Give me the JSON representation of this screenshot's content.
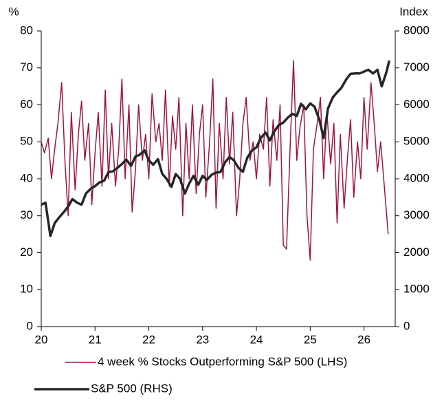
{
  "chart_data": {
    "type": "line",
    "ylabel": "%",
    "y2label": "Index",
    "xlim": [
      20,
      26.58
    ],
    "xticks": [
      20,
      21,
      22,
      23,
      24,
      25,
      26
    ],
    "ylim": [
      0,
      80
    ],
    "yticks": [
      0,
      10,
      20,
      30,
      40,
      50,
      60,
      70,
      80
    ],
    "y2lim": [
      0,
      8000
    ],
    "y2ticks": [
      0,
      1000,
      2000,
      3000,
      4000,
      5000,
      6000,
      7000,
      8000
    ],
    "series": [
      {
        "name": "4 week % Stocks Outperforming S&P 500 (LHS)",
        "color": "#a0123f",
        "axis": "y",
        "x": [
          20,
          20.06,
          20.13,
          20.19,
          20.25,
          20.31,
          20.38,
          20.44,
          20.5,
          20.56,
          20.63,
          20.69,
          20.75,
          20.81,
          20.88,
          20.94,
          21,
          21.06,
          21.13,
          21.19,
          21.25,
          21.31,
          21.38,
          21.44,
          21.5,
          21.56,
          21.63,
          21.69,
          21.75,
          21.81,
          21.88,
          21.94,
          22,
          22.06,
          22.13,
          22.19,
          22.25,
          22.31,
          22.38,
          22.44,
          22.5,
          22.56,
          22.63,
          22.69,
          22.75,
          22.81,
          22.88,
          22.94,
          23,
          23.06,
          23.13,
          23.19,
          23.25,
          23.31,
          23.38,
          23.44,
          23.5,
          23.56,
          23.63,
          23.69,
          23.75,
          23.81,
          23.88,
          23.94,
          24,
          24.06,
          24.13,
          24.19,
          24.25,
          24.31,
          24.38,
          24.44,
          24.5,
          24.56,
          24.63,
          24.69,
          24.75,
          24.81,
          24.88,
          24.94,
          25,
          25.06,
          25.13,
          25.19,
          25.25,
          25.31,
          25.38,
          25.44,
          25.5,
          25.56,
          25.63,
          25.69,
          25.75,
          25.81,
          25.88,
          25.94,
          26,
          26.06,
          26.13,
          26.19,
          26.25,
          26.31,
          26.45
        ],
        "values": [
          50,
          47,
          51,
          40,
          48,
          55,
          66,
          45,
          30,
          58,
          37,
          52,
          61,
          45,
          55,
          33,
          47,
          58,
          38,
          64,
          40,
          55,
          38,
          48,
          67,
          40,
          60,
          31,
          42,
          60,
          45,
          52,
          40,
          63,
          50,
          55,
          45,
          64,
          38,
          57,
          48,
          62,
          30,
          55,
          40,
          60,
          36,
          52,
          60,
          35,
          50,
          67,
          32,
          55,
          40,
          62,
          44,
          58,
          30,
          40,
          55,
          62,
          45,
          50,
          40,
          52,
          48,
          62,
          38,
          56,
          45,
          60,
          22,
          21,
          50,
          72,
          45,
          54,
          60,
          30,
          18,
          48,
          55,
          62,
          40,
          58,
          44,
          55,
          28,
          52,
          32,
          45,
          56,
          35,
          50,
          40,
          62,
          48,
          66,
          55,
          42,
          50,
          25
        ]
      },
      {
        "name": "S&P 500 (RHS)",
        "color": "#262626",
        "axis": "y2",
        "x": [
          20,
          20.08,
          20.17,
          20.25,
          20.33,
          20.42,
          20.5,
          20.58,
          20.67,
          20.75,
          20.83,
          20.92,
          21,
          21.08,
          21.17,
          21.25,
          21.33,
          21.42,
          21.5,
          21.58,
          21.67,
          21.75,
          21.83,
          21.92,
          22,
          22.08,
          22.17,
          22.25,
          22.33,
          22.42,
          22.5,
          22.58,
          22.67,
          22.75,
          22.83,
          22.92,
          23,
          23.08,
          23.17,
          23.25,
          23.33,
          23.42,
          23.5,
          23.58,
          23.67,
          23.75,
          23.83,
          23.92,
          24,
          24.08,
          24.17,
          24.25,
          24.33,
          24.42,
          24.5,
          24.58,
          24.67,
          24.75,
          24.83,
          24.92,
          25,
          25.08,
          25.17,
          25.25,
          25.33,
          25.42,
          25.5,
          25.58,
          25.67,
          25.75,
          25.83,
          25.92,
          26,
          26.08,
          26.17,
          26.25,
          26.33,
          26.42,
          26.47
        ],
        "values": [
          3300,
          3350,
          2450,
          2800,
          2950,
          3100,
          3250,
          3450,
          3350,
          3300,
          3600,
          3730,
          3800,
          3900,
          3950,
          4180,
          4200,
          4300,
          4400,
          4520,
          4350,
          4600,
          4650,
          4770,
          4500,
          4380,
          4530,
          4130,
          4000,
          3780,
          4130,
          4000,
          3600,
          3870,
          4080,
          3840,
          4080,
          3970,
          4110,
          4170,
          4180,
          4450,
          4590,
          4500,
          4290,
          4190,
          4570,
          4770,
          4850,
          5100,
          5250,
          5040,
          5280,
          5460,
          5520,
          5650,
          5760,
          5700,
          6030,
          5880,
          6040,
          5950,
          5600,
          5100,
          5900,
          6200,
          6340,
          6460,
          6690,
          6840,
          6850,
          6850,
          6900,
          6950,
          6850,
          6950,
          6500,
          6900,
          7200
        ]
      }
    ]
  }
}
